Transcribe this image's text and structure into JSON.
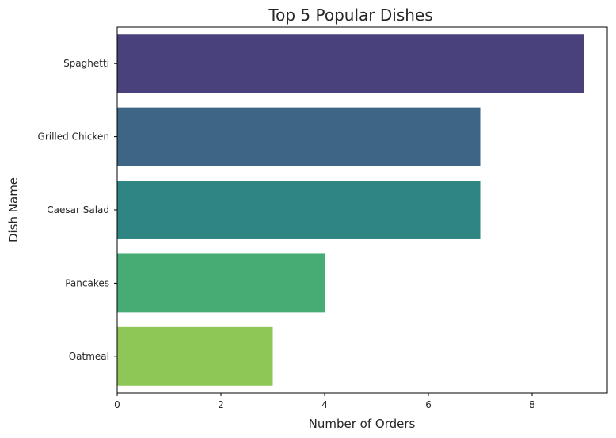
{
  "chart_data": {
    "type": "bar",
    "orientation": "horizontal",
    "title": "Top 5 Popular Dishes",
    "xlabel": "Number of Orders",
    "ylabel": "Dish Name",
    "categories": [
      "Spaghetti",
      "Grilled Chicken",
      "Caesar Salad",
      "Pancakes",
      "Oatmeal"
    ],
    "values": [
      9,
      7,
      7,
      4,
      3
    ],
    "colors": [
      "#48417b",
      "#3e6585",
      "#2e8581",
      "#47ab74",
      "#8ec756"
    ],
    "xlim": [
      0,
      9.45
    ],
    "xticks": [
      "0",
      "2",
      "4",
      "6",
      "8"
    ],
    "grid": false,
    "legend": "none"
  }
}
